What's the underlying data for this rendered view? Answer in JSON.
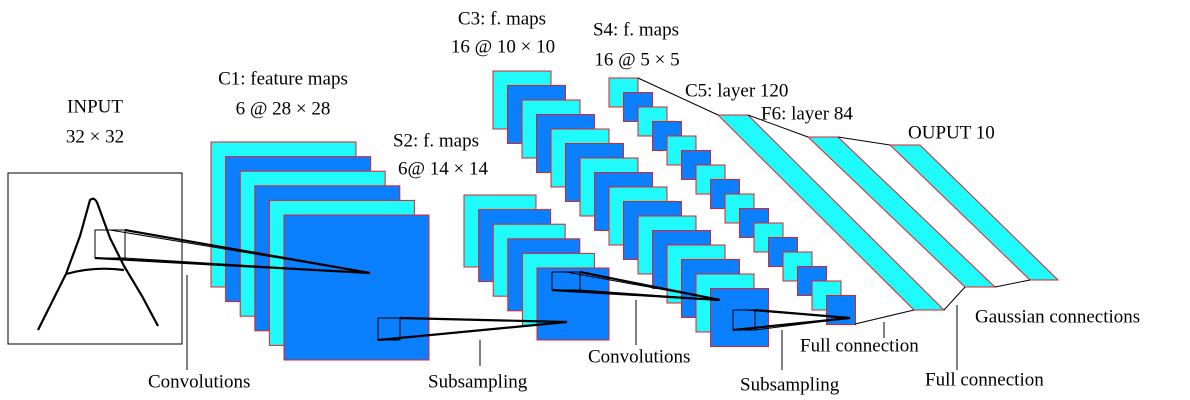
{
  "layers": [
    {
      "title": "INPUT",
      "subtitle": "32 × 32"
    },
    {
      "title": "C1: feature maps",
      "subtitle": "6 @ 28 × 28"
    },
    {
      "title": "S2: f. maps",
      "subtitle": "6@ 14 × 14"
    },
    {
      "title": "C3: f. maps",
      "subtitle": "16 @ 10 × 10"
    },
    {
      "title": "S4: f. maps",
      "subtitle": "16 @ 5 × 5"
    },
    {
      "title": "C5: layer 120"
    },
    {
      "title": "F6: layer 84"
    },
    {
      "title": "OUPUT 10"
    }
  ],
  "operations": [
    {
      "label": "Convolutions"
    },
    {
      "label": "Subsampling"
    },
    {
      "label": "Convolutions"
    },
    {
      "label": "Subsampling"
    },
    {
      "label": "Full connection"
    },
    {
      "label": "Full connection"
    },
    {
      "label": "Gaussian connections"
    }
  ]
}
